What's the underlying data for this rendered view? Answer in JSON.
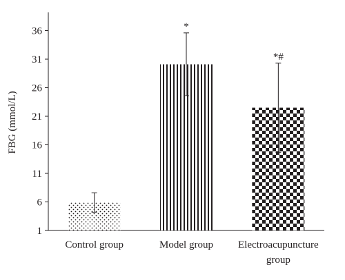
{
  "chart_data": {
    "type": "bar",
    "ylabel": "FBG (mmol/L)",
    "xlabel": "",
    "ylim": [
      1,
      40
    ],
    "yticks": [
      1,
      6,
      11,
      16,
      21,
      26,
      31,
      36
    ],
    "grid": false,
    "legend": "none",
    "categories": [
      {
        "name": "Control group",
        "label_lines": [
          "Control group"
        ],
        "value": 5.9,
        "error": 1.7,
        "annotation": "",
        "pattern": "dots"
      },
      {
        "name": "Model group",
        "label_lines": [
          "Model group"
        ],
        "value": 30.1,
        "error": 5.5,
        "annotation": "*",
        "pattern": "vertical-lines"
      },
      {
        "name": "Electroacupuncture group",
        "label_lines": [
          "Electroacupuncture",
          "group"
        ],
        "value": 22.5,
        "error": 7.8,
        "annotation": "*#",
        "pattern": "checkerboard"
      }
    ]
  },
  "colors": {
    "ink": "#231f20",
    "background": "#ffffff"
  }
}
